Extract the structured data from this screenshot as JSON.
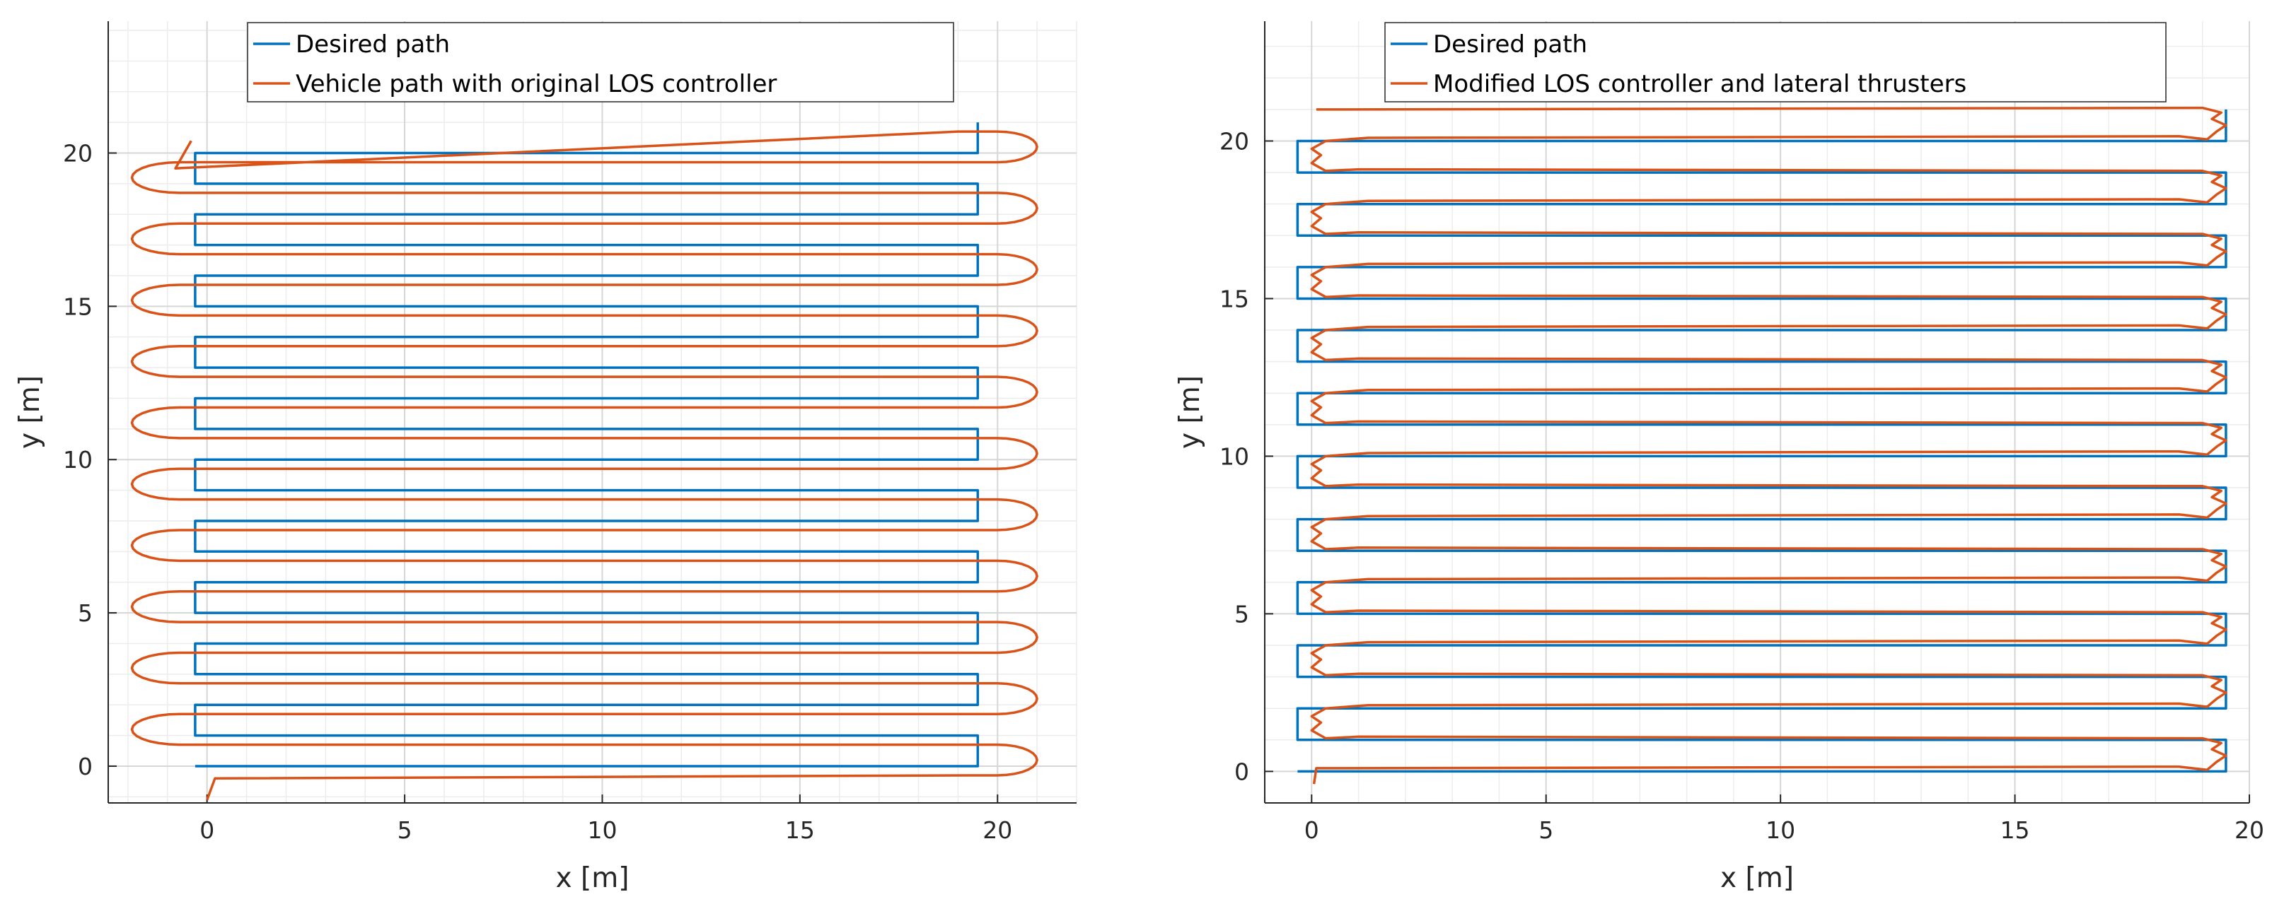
{
  "chart_data": [
    {
      "type": "line",
      "xlabel": "x [m]",
      "ylabel": "y [m]",
      "xlim": [
        -2.5,
        22
      ],
      "ylim": [
        -1.2,
        24.3
      ],
      "xticks": [
        0,
        5,
        10,
        15,
        20
      ],
      "yticks": [
        0,
        5,
        10,
        15,
        20
      ],
      "grid": true,
      "legend_position": "top",
      "series": [
        {
          "name": "Desired path",
          "color": "#0072BD",
          "description": "rectangular lawnmower sweep, rows ~1 m apart from y=0 to y=21, x from about -0.3 to 19.5"
        },
        {
          "name": "Vehicle path with original LOS controller",
          "color": "#D95319",
          "description": "follows rows but makes wide looping turns past both ends, reaching about x=-2.0 and x=21.0"
        }
      ]
    },
    {
      "type": "line",
      "xlabel": "x [m]",
      "ylabel": "y [m]",
      "xlim": [
        -1.0,
        20.0
      ],
      "ylim": [
        -1.0,
        23.8
      ],
      "xticks": [
        0,
        5,
        10,
        15,
        20
      ],
      "yticks": [
        0,
        5,
        10,
        15,
        20
      ],
      "grid": true,
      "legend_position": "top",
      "series": [
        {
          "name": "Desired path",
          "color": "#0072BD",
          "description": "rectangular lawnmower sweep, rows ~1 m apart from y=0 to y=21, x from about -0.3 to 19.5"
        },
        {
          "name": "Modified LOS controller and lateral thrusters",
          "color": "#D95319",
          "description": "tracks desired path closely with tight turns and small overshoots near ends"
        }
      ]
    }
  ]
}
